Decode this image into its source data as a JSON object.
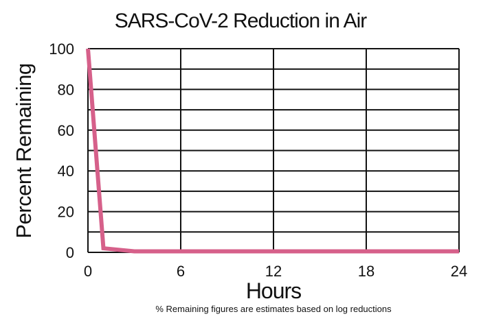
{
  "chart_data": {
    "type": "line",
    "title": "SARS-CoV-2 Reduction in Air",
    "xlabel": "Hours",
    "ylabel": "Percent Remaining",
    "footnote": "% Remaining figures are estimates based on log reductions",
    "xlim": [
      0,
      24
    ],
    "ylim": [
      0,
      100
    ],
    "x_ticks": [
      0,
      6,
      12,
      18,
      24
    ],
    "y_ticks": [
      0,
      20,
      40,
      60,
      80,
      100
    ],
    "grid": true,
    "y_grid_step": 10,
    "x_grid_step": 6,
    "legend": null,
    "series": [
      {
        "name": "Percent Remaining",
        "color": "#d6608a",
        "x": [
          0,
          1,
          3,
          24
        ],
        "y": [
          100,
          2,
          0.5,
          0.5
        ]
      }
    ]
  },
  "colors": {
    "line": "#d6608a",
    "grid": "#111111",
    "background": "#ffffff"
  }
}
